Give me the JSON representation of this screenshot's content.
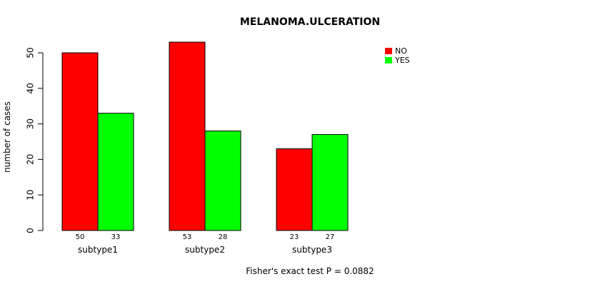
{
  "chart_data": {
    "type": "bar",
    "title": "MELANOMA.ULCERATION",
    "xlabel": "",
    "ylabel": "number of cases",
    "caption": "Fisher's exact test P = 0.0882",
    "categories": [
      "subtype1",
      "subtype2",
      "subtype3"
    ],
    "series": [
      {
        "name": "NO",
        "color": "#ff0000",
        "values": [
          50,
          53,
          23
        ]
      },
      {
        "name": "YES",
        "color": "#00ff00",
        "values": [
          33,
          28,
          27
        ]
      }
    ],
    "yticks": [
      0,
      10,
      20,
      30,
      40,
      50
    ],
    "ylim": [
      0,
      54
    ],
    "legend_position": "top-right"
  }
}
